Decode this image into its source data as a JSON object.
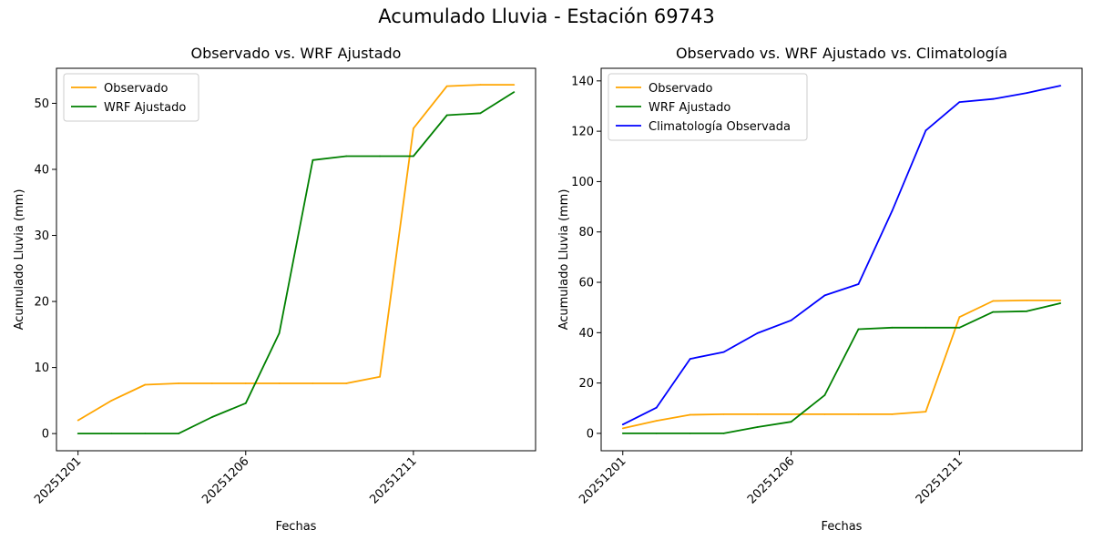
{
  "figure": {
    "title": "Acumulado Lluvia - Estación 69743"
  },
  "colors": {
    "observado": "#FFA500",
    "wrf": "#008000",
    "climatologia": "#0000FF"
  },
  "chart_data": [
    {
      "type": "line",
      "title": "Observado vs. WRF Ajustado",
      "xlabel": "Fechas",
      "ylabel": "Acumulado Lluvia (mm)",
      "x": [
        "20251201",
        "20251202",
        "20251203",
        "20251204",
        "20251205",
        "20251206",
        "20251207",
        "20251208",
        "20251209",
        "20251210",
        "20251211",
        "20251212",
        "20251213",
        "20251214"
      ],
      "xticks": [
        "20251201",
        "20251206",
        "20251211"
      ],
      "yticks": [
        0,
        10,
        20,
        30,
        40,
        50
      ],
      "ylim": [
        -2.6,
        55.3
      ],
      "legend": "top-left",
      "grid": false,
      "series": [
        {
          "name": "Observado",
          "color": "#FFA500",
          "values": [
            2.0,
            5.0,
            7.4,
            7.6,
            7.6,
            7.6,
            7.6,
            7.6,
            7.6,
            8.6,
            46.2,
            52.6,
            52.8,
            52.8
          ]
        },
        {
          "name": "WRF Ajustado",
          "color": "#008000",
          "values": [
            0.0,
            0.0,
            0.0,
            0.0,
            2.5,
            4.6,
            15.2,
            41.4,
            42.0,
            42.0,
            42.0,
            48.2,
            48.5,
            51.7
          ]
        }
      ]
    },
    {
      "type": "line",
      "title": "Observado vs. WRF Ajustado vs. Climatología",
      "xlabel": "Fechas",
      "ylabel": "Acumulado Lluvia (mm)",
      "x": [
        "20251201",
        "20251202",
        "20251203",
        "20251204",
        "20251205",
        "20251206",
        "20251207",
        "20251208",
        "20251209",
        "20251210",
        "20251211",
        "20251212",
        "20251213",
        "20251214"
      ],
      "xticks": [
        "20251201",
        "20251206",
        "20251211"
      ],
      "yticks": [
        0,
        20,
        40,
        60,
        80,
        100,
        120,
        140
      ],
      "ylim": [
        -6.9,
        145.0
      ],
      "legend": "top-left",
      "grid": false,
      "series": [
        {
          "name": "Observado",
          "color": "#FFA500",
          "values": [
            2.0,
            5.0,
            7.4,
            7.6,
            7.6,
            7.6,
            7.6,
            7.6,
            7.6,
            8.6,
            46.2,
            52.6,
            52.8,
            52.8
          ]
        },
        {
          "name": "WRF Ajustado",
          "color": "#008000",
          "values": [
            0.0,
            0.0,
            0.0,
            0.0,
            2.5,
            4.6,
            15.2,
            41.4,
            42.0,
            42.0,
            42.0,
            48.2,
            48.5,
            51.7
          ]
        },
        {
          "name": "Climatología Observada",
          "color": "#0000FF",
          "values": [
            3.5,
            10.2,
            29.6,
            32.3,
            39.8,
            44.9,
            54.8,
            59.3,
            88.3,
            120.3,
            131.6,
            132.8,
            135.2,
            138.1
          ]
        }
      ]
    }
  ]
}
